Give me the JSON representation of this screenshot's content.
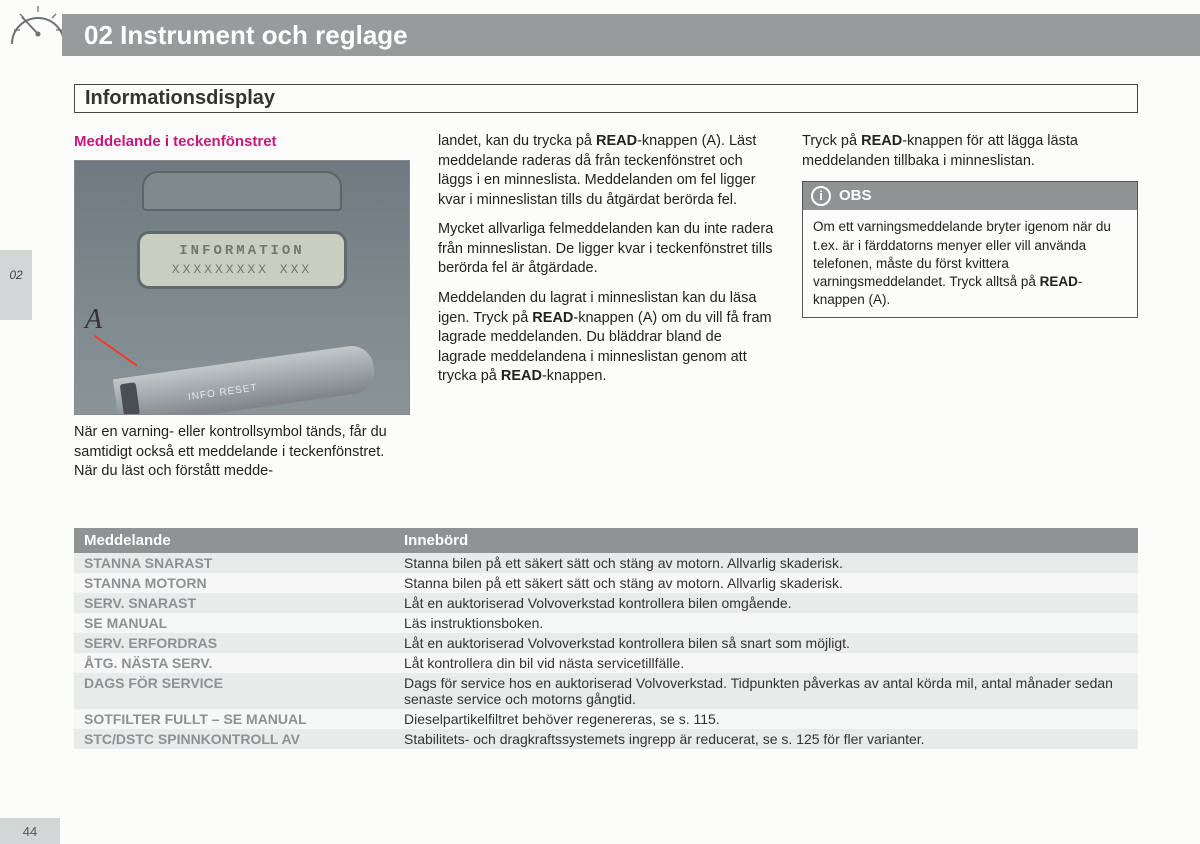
{
  "chapter_title": "02 Instrument och reglage",
  "section_title": "Informationsdisplay",
  "thumb_tab": "02",
  "page_number": "44",
  "col1": {
    "heading": "Meddelande i teckenfönstret",
    "lcd_line1": "INFORMATION",
    "lcd_line2": "XXXXXXXXX  XXX",
    "a_label": "A",
    "stalk_labels": "INFO  RESET",
    "caption": "När en varning- eller kontrollsymbol tänds, får du samtidigt också ett meddelande i teckenfönstret. När du läst och förstått medde-"
  },
  "col2": {
    "p1a": "landet, kan du trycka på ",
    "p1b": "READ",
    "p1c": "-knappen (A). Läst meddelande raderas då från teckenfönstret och läggs i en minneslista. Meddelanden om fel ligger kvar i minneslistan tills du åtgärdat berörda fel.",
    "p2": "Mycket allvarliga felmeddelanden kan du inte radera från minneslistan. De ligger kvar i teckenfönstret tills berörda fel är åtgärdade.",
    "p3a": "Meddelanden du lagrat i minneslistan kan du läsa igen. Tryck på ",
    "p3b": "READ",
    "p3c": "-knappen (A) om du vill få fram lagrade meddelanden. Du bläddrar bland de lagrade meddelandena i minneslistan genom att trycka på ",
    "p3d": "READ",
    "p3e": "-knappen."
  },
  "col3": {
    "p1a": "Tryck på ",
    "p1b": "READ",
    "p1c": "-knappen för att lägga lästa meddelanden tillbaka i minneslistan.",
    "note_label": "OBS",
    "note_icon": "i",
    "note_body_a": "Om ett varningsmeddelande bryter igenom när du t.ex. är i färddatorns menyer eller vill använda telefonen, måste du först kvittera varningsmeddelandet. Tryck alltså på ",
    "note_body_b": "READ",
    "note_body_c": "-knappen (A)."
  },
  "table": {
    "head_msg": "Meddelande",
    "head_mean": "Innebörd",
    "rows": [
      {
        "msg": "STANNA SNARAST",
        "mean": "Stanna bilen på ett säkert sätt och stäng av motorn. Allvarlig skaderisk."
      },
      {
        "msg": "STANNA MOTORN",
        "mean": "Stanna bilen på ett säkert sätt och stäng av motorn. Allvarlig skaderisk."
      },
      {
        "msg": "SERV. SNARAST",
        "mean": "Låt en auktoriserad Volvoverkstad kontrollera bilen omgående."
      },
      {
        "msg": "SE MANUAL",
        "mean": "Läs instruktionsboken."
      },
      {
        "msg": "SERV. ERFORDRAS",
        "mean": "Låt en auktoriserad Volvoverkstad kontrollera bilen så snart som möjligt."
      },
      {
        "msg": "ÅTG. NÄSTA SERV.",
        "mean": "Låt kontrollera din bil vid nästa servicetillfälle."
      },
      {
        "msg": "DAGS FÖR SERVICE",
        "mean": "Dags för service hos en auktoriserad Volvoverkstad. Tidpunkten påverkas av antal körda mil, antal månader sedan senaste service och motorns gångtid."
      },
      {
        "msg": "SOTFILTER FULLT – SE MANUAL",
        "mean": "Dieselpartikelfiltret behöver regenereras, se s. 115."
      },
      {
        "msg": "STC/DSTC SPINNKONTROLL AV",
        "mean": "Stabilitets- och dragkraftssystemets ingrepp är reducerat, se s. 125 för fler varianter."
      }
    ]
  }
}
